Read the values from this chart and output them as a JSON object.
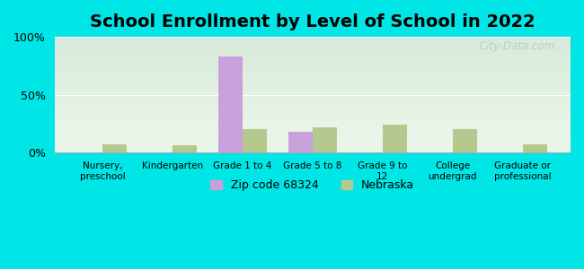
{
  "title": "School Enrollment by Level of School in 2022",
  "categories": [
    "Nursery,\npreschool",
    "Kindergarten",
    "Grade 1 to 4",
    "Grade 5 to 8",
    "Grade 9 to\n12",
    "College\nundergrad",
    "Graduate or\nprofessional"
  ],
  "zip_values": [
    0,
    0,
    83,
    18,
    0,
    0,
    0
  ],
  "nebraska_values": [
    7,
    6,
    20,
    22,
    24,
    20,
    7
  ],
  "zip_color": "#c9a0dc",
  "nebraska_color": "#b5c98e",
  "zip_label": "Zip code 68324",
  "nebraska_label": "Nebraska",
  "ylim": [
    0,
    100
  ],
  "yticks": [
    0,
    50,
    100
  ],
  "ytick_labels": [
    "0%",
    "50%",
    "100%"
  ],
  "bg_outer": "#00e5e5",
  "bg_inner": "#eaf5ea",
  "title_fontsize": 14,
  "bar_width": 0.35,
  "watermark_text": "City-Data.com",
  "watermark_color": "#b0c8c8"
}
